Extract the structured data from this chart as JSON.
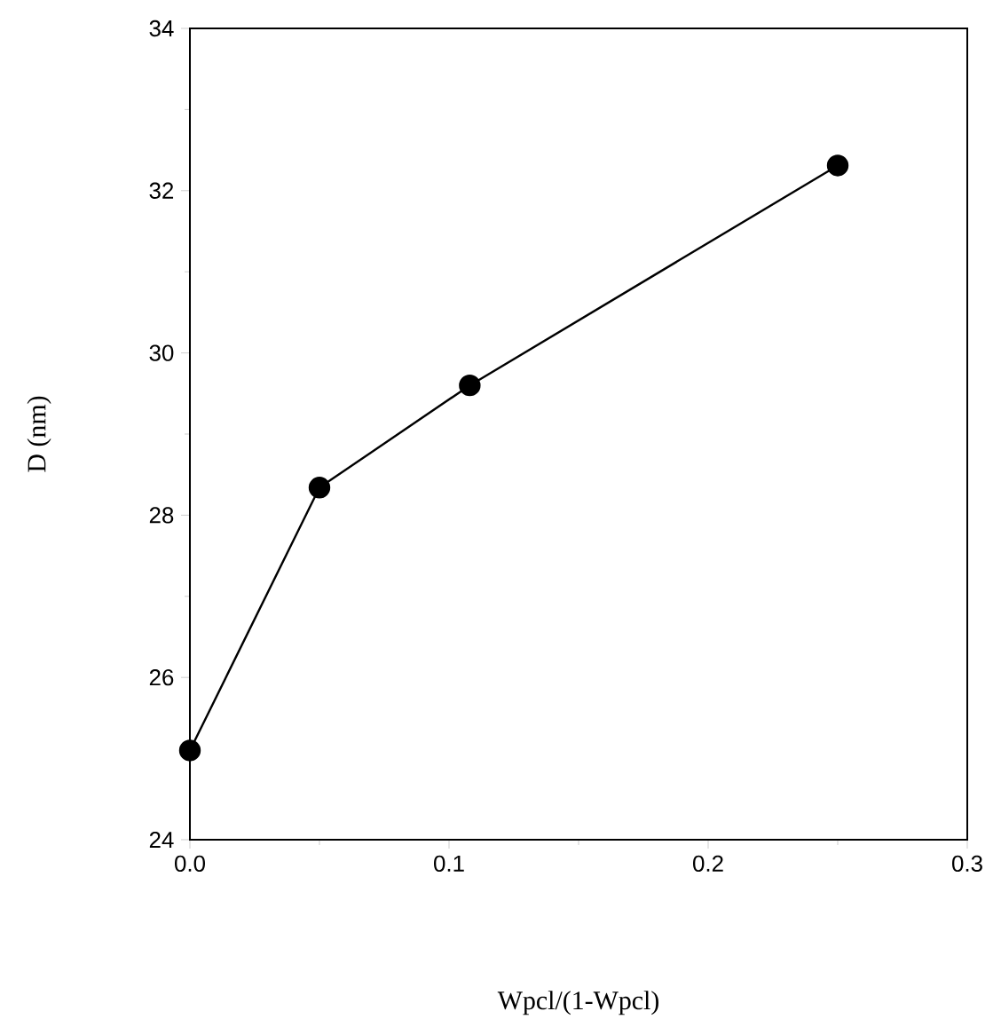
{
  "chart_data": {
    "type": "line",
    "xlabel": "Wpcl/(1-Wpcl)",
    "ylabel": "D (nm)",
    "x": [
      0.0,
      0.05,
      0.108,
      0.25
    ],
    "series": [
      {
        "color": "#000000",
        "values": [
          25.1,
          28.34,
          29.6,
          32.31
        ]
      }
    ],
    "xlim": [
      0.0,
      0.3
    ],
    "xticks": [
      {
        "value": 0.0,
        "label": "0.0"
      },
      {
        "value": 0.1,
        "label": "0.1"
      },
      {
        "value": 0.2,
        "label": "0.2"
      },
      {
        "value": 0.3,
        "label": "0.3"
      }
    ],
    "ylim": [
      24,
      34
    ],
    "yticks": [
      24,
      26,
      28,
      30,
      32,
      34
    ],
    "marker": "circle",
    "line_style": "solid"
  }
}
